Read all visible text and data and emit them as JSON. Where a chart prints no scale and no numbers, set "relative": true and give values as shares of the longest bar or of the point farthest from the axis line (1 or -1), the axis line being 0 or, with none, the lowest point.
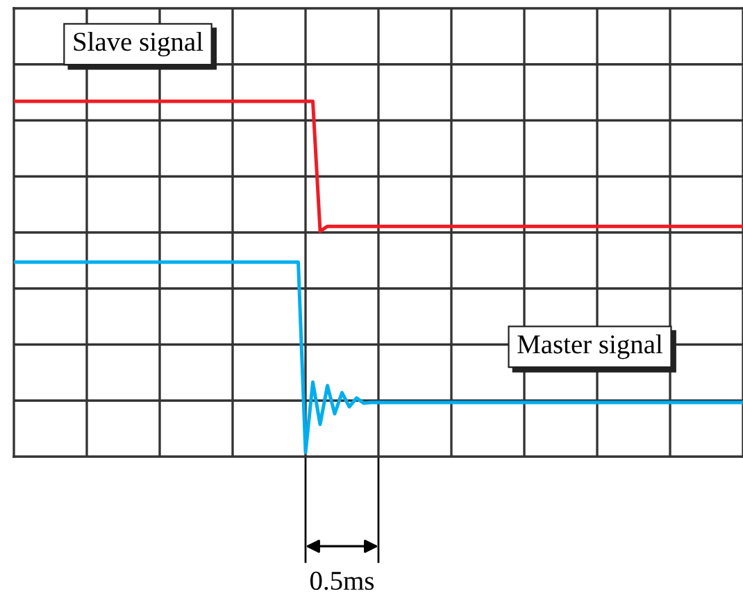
{
  "chart_data": {
    "type": "line",
    "relative": true,
    "grid": true,
    "legend": false,
    "line_style": "solid",
    "marker": "none",
    "categories": [
      null,
      null,
      null,
      null,
      null,
      null,
      null,
      null,
      null,
      null,
      null,
      null,
      null,
      null,
      null,
      null,
      null,
      null,
      null,
      null,
      null,
      null,
      null,
      null,
      null,
      null,
      null,
      null,
      null,
      null,
      null,
      null,
      null,
      null,
      null,
      null,
      null,
      null,
      null,
      null,
      null,
      null,
      null,
      null,
      null,
      null,
      null,
      null,
      null,
      null,
      null,
      null,
      null,
      null,
      null,
      null,
      null,
      null,
      null,
      null,
      null,
      null,
      null,
      null,
      null,
      null,
      null,
      null,
      null,
      null,
      null,
      null,
      null,
      null,
      null,
      null,
      null,
      null,
      null,
      null,
      null,
      null,
      null,
      null,
      null,
      null,
      null,
      null,
      null,
      null,
      null,
      null,
      null,
      null,
      null,
      null,
      null,
      null,
      null,
      null,
      null
    ],
    "series": [
      {
        "name": "Slave signal",
        "color": "#ee1c25",
        "values": [
          1,
          1,
          1,
          1,
          1,
          1,
          1,
          1,
          1,
          1,
          1,
          1,
          1,
          1,
          1,
          1,
          1,
          1,
          1,
          1,
          1,
          1,
          1,
          1,
          1,
          1,
          1,
          1,
          1,
          1,
          1,
          1,
          1,
          1,
          1,
          1,
          1,
          1,
          1,
          1,
          1,
          1,
          0.63,
          0.644,
          0.644,
          0.644,
          0.644,
          0.644,
          0.644,
          0.644,
          0.644,
          0.644,
          0.644,
          0.644,
          0.644,
          0.644,
          0.644,
          0.644,
          0.644,
          0.644,
          0.644,
          0.644,
          0.644,
          0.644,
          0.644,
          0.644,
          0.644,
          0.644,
          0.644,
          0.644,
          0.644,
          0.644,
          0.644,
          0.644,
          0.644,
          0.644,
          0.644,
          0.644,
          0.644,
          0.644,
          0.644,
          0.644,
          0.644,
          0.644,
          0.644,
          0.644,
          0.644,
          0.644,
          0.644,
          0.644,
          0.644,
          0.644,
          0.644,
          0.644,
          0.644,
          0.644,
          0.644,
          0.644,
          0.644,
          0.644,
          0.644
        ]
      },
      {
        "name": "Master signal",
        "color": "#00aeef",
        "values": [
          0.542,
          0.542,
          0.542,
          0.542,
          0.542,
          0.542,
          0.542,
          0.542,
          0.542,
          0.542,
          0.542,
          0.542,
          0.542,
          0.542,
          0.542,
          0.542,
          0.542,
          0.542,
          0.542,
          0.542,
          0.542,
          0.542,
          0.542,
          0.542,
          0.542,
          0.542,
          0.542,
          0.542,
          0.542,
          0.542,
          0.542,
          0.542,
          0.542,
          0.542,
          0.542,
          0.542,
          0.542,
          0.542,
          0.542,
          0.542,
          0,
          0.2,
          0.08,
          0.19,
          0.11,
          0.17,
          0.13,
          0.155,
          0.14,
          0.142,
          0.142,
          0.142,
          0.142,
          0.142,
          0.142,
          0.142,
          0.142,
          0.142,
          0.142,
          0.142,
          0.142,
          0.142,
          0.142,
          0.142,
          0.142,
          0.142,
          0.142,
          0.142,
          0.142,
          0.142,
          0.142,
          0.142,
          0.142,
          0.142,
          0.142,
          0.142,
          0.142,
          0.142,
          0.142,
          0.142,
          0.142,
          0.142,
          0.142,
          0.142,
          0.142,
          0.142,
          0.142,
          0.142,
          0.142,
          0.142,
          0.142,
          0.142,
          0.142,
          0.142,
          0.142,
          0.142,
          0.142,
          0.142,
          0.142,
          0.142,
          0.142
        ]
      }
    ],
    "annotations": [
      "0.5ms"
    ]
  }
}
